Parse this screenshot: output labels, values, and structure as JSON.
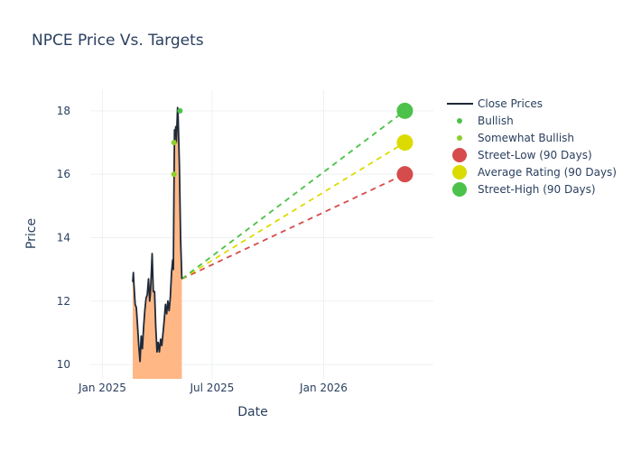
{
  "chart_data": {
    "type": "line",
    "title": "NPCE Price Vs. Targets",
    "xlabel": "Date",
    "ylabel": "Price",
    "x_ticks": [
      {
        "date": "2025-01-01",
        "label": "Jan 2025"
      },
      {
        "date": "2025-07-01",
        "label": "Jul 2025"
      },
      {
        "date": "2026-01-01",
        "label": "Jan 2026"
      }
    ],
    "y_ticks": [
      10,
      12,
      14,
      16,
      18
    ],
    "xlim": [
      "2024-12-12",
      "2026-07-01"
    ],
    "ylim": [
      9.55,
      18.65
    ],
    "grid": true,
    "legend_position": "top-right",
    "close_prices": [
      [
        "2025-02-20",
        12.6
      ],
      [
        "2025-02-21",
        12.9
      ],
      [
        "2025-02-22",
        12.55
      ],
      [
        "2025-02-24",
        11.9
      ],
      [
        "2025-02-26",
        11.8
      ],
      [
        "2025-02-28",
        11.2
      ],
      [
        "2025-03-02",
        10.6
      ],
      [
        "2025-03-04",
        10.1
      ],
      [
        "2025-03-06",
        10.9
      ],
      [
        "2025-03-08",
        10.5
      ],
      [
        "2025-03-10",
        11.2
      ],
      [
        "2025-03-12",
        11.7
      ],
      [
        "2025-03-14",
        12.1
      ],
      [
        "2025-03-16",
        12.2
      ],
      [
        "2025-03-18",
        12.7
      ],
      [
        "2025-03-20",
        12.0
      ],
      [
        "2025-03-21",
        12.2
      ],
      [
        "2025-03-23",
        13.0
      ],
      [
        "2025-03-24",
        13.5
      ],
      [
        "2025-03-26",
        12.3
      ],
      [
        "2025-03-28",
        12.3
      ],
      [
        "2025-03-30",
        11.2
      ],
      [
        "2025-04-01",
        10.4
      ],
      [
        "2025-04-03",
        10.7
      ],
      [
        "2025-04-05",
        10.4
      ],
      [
        "2025-04-07",
        10.8
      ],
      [
        "2025-04-09",
        10.6
      ],
      [
        "2025-04-11",
        11.0
      ],
      [
        "2025-04-13",
        11.4
      ],
      [
        "2025-04-15",
        11.9
      ],
      [
        "2025-04-17",
        11.6
      ],
      [
        "2025-04-19",
        12.0
      ],
      [
        "2025-04-21",
        11.7
      ],
      [
        "2025-04-23",
        12.1
      ],
      [
        "2025-04-25",
        12.9
      ],
      [
        "2025-04-27",
        13.3
      ],
      [
        "2025-04-28",
        13.0
      ],
      [
        "2025-04-29",
        15.6
      ],
      [
        "2025-04-30",
        17.4
      ],
      [
        "2025-05-01",
        17.2
      ],
      [
        "2025-05-02",
        17.5
      ],
      [
        "2025-05-03",
        17.0
      ],
      [
        "2025-05-05",
        18.1
      ],
      [
        "2025-05-06",
        17.8
      ],
      [
        "2025-05-08",
        16.3
      ],
      [
        "2025-05-10",
        14.0
      ],
      [
        "2025-05-12",
        12.7
      ]
    ],
    "bullish": [
      [
        "2025-05-09",
        18.0
      ]
    ],
    "somewhat_bullish": [
      [
        "2025-04-29",
        16.0
      ],
      [
        "2025-04-29",
        17.0
      ]
    ],
    "target_date": "2026-05-15",
    "forecast_start": [
      "2025-05-12",
      12.7
    ],
    "street_low": 16.0,
    "average_rating": 17.0,
    "street_high": 18.0,
    "colors": {
      "close": "#1f2937",
      "area": "#ffb380",
      "bullish": "#4cc24a",
      "somewhat_bullish": "#8ccf2a",
      "street_low": "#d64b4b",
      "average": "#dbdb00",
      "street_high": "#4cc24a"
    },
    "legend": [
      {
        "name": "Close Prices",
        "kind": "line",
        "color": "#1f2937"
      },
      {
        "name": "Bullish",
        "kind": "dot-small",
        "color": "#4cc24a"
      },
      {
        "name": "Somewhat Bullish",
        "kind": "dot-small",
        "color": "#8ccf2a"
      },
      {
        "name": "Street-Low (90 Days)",
        "kind": "dot-large",
        "color": "#d64b4b"
      },
      {
        "name": "Average Rating (90 Days)",
        "kind": "dot-large",
        "color": "#dbdb00"
      },
      {
        "name": "Street-High (90 Days)",
        "kind": "dot-large",
        "color": "#4cc24a"
      }
    ]
  }
}
